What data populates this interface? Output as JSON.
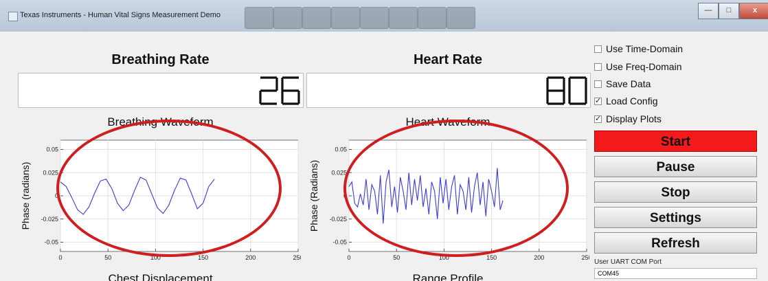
{
  "window": {
    "title": "Texas Instruments - Human Vital Signs Measurement Demo",
    "controls": [
      "—",
      "□",
      "x"
    ]
  },
  "breathing": {
    "heading": "Breathing Rate",
    "value": "26",
    "waveform_title": "Breathing Waveform",
    "bottom_title": "Chest Displacement"
  },
  "heart": {
    "heading": "Heart Rate",
    "value": "80",
    "waveform_title": "Heart Waveform",
    "bottom_title": "Range Profile"
  },
  "checkboxes": [
    {
      "label": "Use Time-Domain",
      "checked": false
    },
    {
      "label": "Use Freq-Domain",
      "checked": false
    },
    {
      "label": "Save Data",
      "checked": false
    },
    {
      "label": "Load Config",
      "checked": true
    },
    {
      "label": "Display Plots",
      "checked": true
    }
  ],
  "buttons": {
    "start": "Start",
    "pause": "Pause",
    "stop": "Stop",
    "settings": "Settings",
    "refresh": "Refresh"
  },
  "uart": {
    "label": "User UART COM Port",
    "value": "COM45"
  },
  "colors": {
    "start_button": "#f21a1a",
    "waveform_line": "#3a3ad6",
    "annotation_ellipse": "#cd1f1f"
  },
  "chart_data": [
    {
      "type": "line",
      "title": "",
      "xlabel": "",
      "ylabel": "Phase (radians)",
      "xlim": [
        0,
        250
      ],
      "ylim": [
        -0.06,
        0.06
      ],
      "xticks": [
        "0",
        "50",
        "100",
        "150",
        "200",
        "250"
      ],
      "yticks": [
        "0.05",
        "0.025",
        "0",
        "-0.025",
        "-0.05"
      ],
      "grid": true,
      "series": [
        {
          "x": [
            0,
            6,
            12,
            18,
            24,
            30,
            36,
            42,
            48,
            54,
            60,
            66,
            72,
            78,
            84,
            90,
            96,
            102,
            108,
            114,
            120,
            126,
            132,
            138,
            144,
            150,
            156,
            162
          ],
          "y": [
            0.015,
            0.01,
            -0.002,
            -0.015,
            -0.02,
            -0.012,
            0.003,
            0.016,
            0.018,
            0.008,
            -0.008,
            -0.016,
            -0.01,
            0.006,
            0.02,
            0.017,
            0.002,
            -0.013,
            -0.019,
            -0.01,
            0.006,
            0.019,
            0.017,
            0.002,
            -0.014,
            -0.008,
            0.01,
            0.018
          ]
        }
      ]
    },
    {
      "type": "line",
      "title": "",
      "xlabel": "",
      "ylabel": "Phase (Radians)",
      "xlim": [
        0,
        250
      ],
      "ylim": [
        -0.06,
        0.06
      ],
      "xticks": [
        "0",
        "50",
        "100",
        "150",
        "200",
        "250"
      ],
      "yticks": [
        "0.05",
        "0.025",
        "0",
        "-0.025",
        "-0.05"
      ],
      "grid": true,
      "series": [
        {
          "x": [
            0,
            3,
            6,
            9,
            12,
            15,
            18,
            21,
            24,
            27,
            30,
            33,
            36,
            39,
            42,
            45,
            48,
            51,
            54,
            57,
            60,
            63,
            66,
            69,
            72,
            75,
            78,
            81,
            84,
            87,
            90,
            93,
            96,
            99,
            102,
            105,
            108,
            111,
            114,
            117,
            120,
            123,
            126,
            129,
            132,
            135,
            138,
            141,
            144,
            147,
            150,
            153,
            156,
            159,
            162
          ],
          "y": [
            0.01,
            0.015,
            -0.008,
            -0.012,
            0.002,
            -0.01,
            0.018,
            -0.015,
            0.012,
            0.005,
            -0.02,
            0.022,
            -0.03,
            0.015,
            0.028,
            -0.012,
            0.01,
            -0.018,
            0.02,
            0.005,
            -0.015,
            0.025,
            -0.01,
            0.018,
            -0.005,
            0.022,
            -0.012,
            0.008,
            -0.02,
            0.015,
            0.005,
            -0.025,
            0.02,
            -0.008,
            0.018,
            -0.015,
            0.01,
            0.022,
            -0.02,
            0.012,
            0.005,
            -0.015,
            0.02,
            -0.018,
            0.01,
            0.025,
            -0.01,
            0.015,
            -0.022,
            0.018,
            0.005,
            -0.012,
            0.03,
            -0.015,
            -0.005
          ]
        }
      ]
    }
  ]
}
